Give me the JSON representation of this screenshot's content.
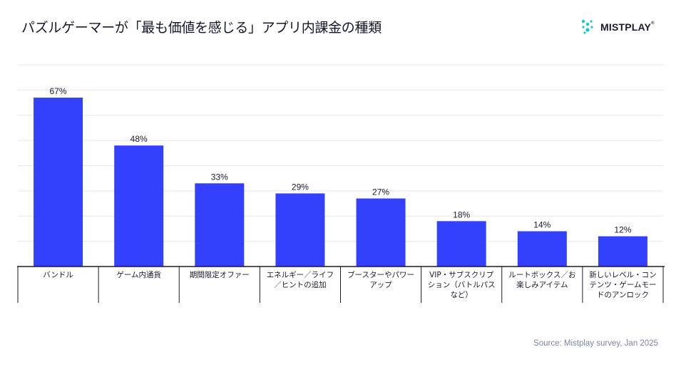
{
  "title": "パズルゲーマーが「最も価値を感じる」アプリ内課金の種類",
  "logo": {
    "text": "MISTPLAY",
    "mark": "®",
    "icon": "mistplay-dots-icon",
    "color": "#15c8c8"
  },
  "source": "Source: Mistplay survey, Jan 2025",
  "colors": {
    "bar": "#3341ff",
    "grid": "#e6e6ee",
    "axis": "#1a1a2e"
  },
  "chart_data": {
    "type": "bar",
    "title": "パズルゲーマーが「最も価値を感じる」アプリ内課金の種類",
    "xlabel": "",
    "ylabel": "",
    "ylim": [
      0,
      80
    ],
    "grid": true,
    "value_suffix": "%",
    "categories": [
      [
        "バンドル"
      ],
      [
        "ゲーム内通貨"
      ],
      [
        "期間限定オファー"
      ],
      [
        "エネルギー／ライフ",
        "／ヒントの追加"
      ],
      [
        "ブースターやパワー",
        "アップ"
      ],
      [
        "VIP・サブスクリプ",
        "ション（バトルパス",
        "など）"
      ],
      [
        "ルートボックス／お",
        "楽しみアイテム"
      ],
      [
        "新しいレベル・コン",
        "テンツ・ゲームモー",
        "ドのアンロック"
      ]
    ],
    "values": [
      67,
      48,
      33,
      29,
      27,
      18,
      14,
      12
    ]
  }
}
